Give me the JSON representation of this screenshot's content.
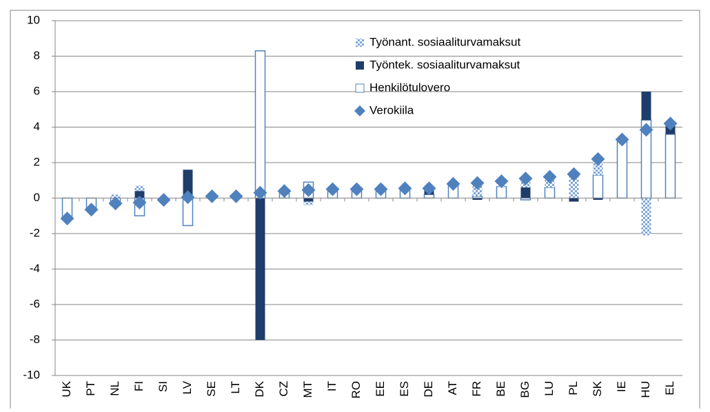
{
  "chart_data": {
    "type": "bar",
    "stacked": true,
    "categories": [
      "UK",
      "PT",
      "NL",
      "FI",
      "SI",
      "LV",
      "SE",
      "LT",
      "DK",
      "CZ",
      "MT",
      "IT",
      "RO",
      "EE",
      "ES",
      "DE",
      "AT",
      "FR",
      "BE",
      "BG",
      "LU",
      "PL",
      "SK",
      "IE",
      "HU",
      "EL"
    ],
    "series": [
      {
        "name": "Työnant. sosiaaliturvamaksut",
        "color": "#7fa7d9",
        "pattern": "checkered",
        "values": [
          0,
          0,
          0.2,
          0.3,
          0,
          0,
          0,
          0,
          0,
          0,
          -0.2,
          0,
          0.1,
          0,
          0,
          0,
          0,
          0.7,
          0.3,
          0.4,
          0.6,
          1.3,
          0.9,
          0,
          -2.1,
          0
        ]
      },
      {
        "name": "Työntek. sosiaaliturvamaksut",
        "color": "#1f3d6b",
        "values": [
          0,
          0,
          0,
          0.4,
          0,
          1.6,
          0,
          0,
          -8.0,
          0,
          -0.2,
          0,
          0,
          0,
          0,
          0.3,
          0,
          -0.1,
          0,
          0.6,
          0,
          -0.2,
          -0.1,
          0,
          1.6,
          0.6
        ]
      },
      {
        "name": "Henkilötulovero",
        "color": "#4f81bd",
        "outline": true,
        "values": [
          -1.2,
          -0.6,
          -0.4,
          -1.0,
          0,
          -1.55,
          0.1,
          0.1,
          8.3,
          0.4,
          0.9,
          0.5,
          0.4,
          0.5,
          0.55,
          0.2,
          0.8,
          0.1,
          0.65,
          -0.1,
          0.6,
          0,
          1.3,
          3.3,
          4.4,
          3.6
        ]
      },
      {
        "name": "Verokiila",
        "color": "#4f81bd",
        "marker": "diamond",
        "values": [
          -1.15,
          -0.65,
          -0.3,
          -0.25,
          -0.1,
          0.05,
          0.1,
          0.1,
          0.3,
          0.4,
          0.45,
          0.5,
          0.5,
          0.5,
          0.55,
          0.55,
          0.8,
          0.85,
          0.95,
          1.1,
          1.2,
          1.35,
          2.2,
          3.3,
          3.85,
          4.2
        ]
      }
    ],
    "ylim": [
      -10,
      10
    ],
    "yticks": [
      -10,
      -8,
      -6,
      -4,
      -2,
      0,
      2,
      4,
      6,
      8,
      10
    ],
    "grid": true
  }
}
